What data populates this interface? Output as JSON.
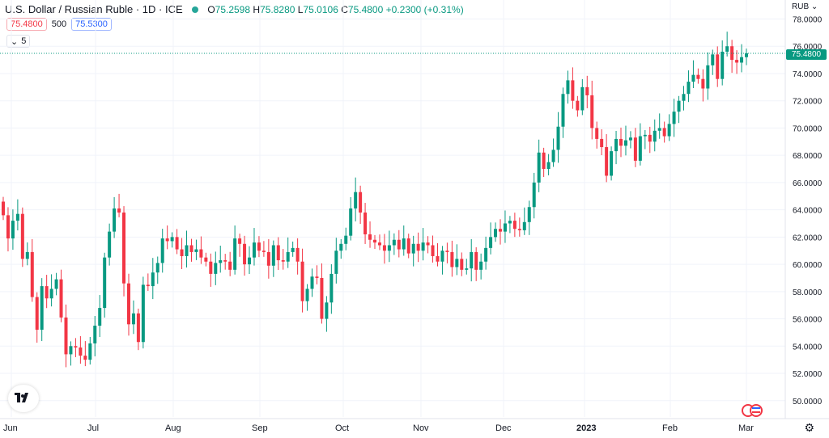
{
  "header": {
    "symbol": "U.S. Dollar / Russian Ruble · 1D · ICE",
    "open_label": "O",
    "open": "75.2598",
    "high_label": "H",
    "high": "75.8280",
    "low_label": "L",
    "low": "75.0106",
    "close_label": "C",
    "close": "75.4800",
    "change": "+0.2300 (+0.31%)",
    "bid": "75.4800",
    "spread": "500",
    "ask": "75.5300",
    "indicator_count": "5"
  },
  "price_axis": {
    "currency": "RUB",
    "last_price_label": "75.4800",
    "tick_labels": [
      "78.0000",
      "76.0000",
      "74.0000",
      "72.0000",
      "70.0000",
      "68.0000",
      "66.0000",
      "64.0000",
      "62.0000",
      "60.0000",
      "58.0000",
      "56.0000",
      "54.0000",
      "52.0000",
      "50.0000"
    ]
  },
  "time_axis": {
    "tick_labels": [
      "Jun",
      "Jul",
      "Aug",
      "Sep",
      "Oct",
      "Nov",
      "Dec",
      "2023",
      "Feb",
      "Mar"
    ]
  },
  "colors": {
    "up": "#089981",
    "down": "#f23645",
    "grid": "#f0f3fa",
    "last_line": "#089981"
  },
  "chart_data": {
    "type": "candlestick",
    "ylabel": "RUB",
    "ylim": [
      48.8,
      78.8
    ],
    "grid": true,
    "y_ticks": [
      78,
      76,
      74,
      72,
      70,
      68,
      66,
      64,
      62,
      60,
      58,
      56,
      54,
      52,
      50
    ],
    "x_ticks": [
      "Jun",
      "Jul",
      "Aug",
      "Sep",
      "Oct",
      "Nov",
      "Dec",
      "2023",
      "Feb",
      "Mar"
    ],
    "last_close": 75.48,
    "closes": [
      63.6,
      61.9,
      63.2,
      63.7,
      60.4,
      60.9,
      57.6,
      55.2,
      58.4,
      57.5,
      58.2,
      58.9,
      56.1,
      53.4,
      54.0,
      53.9,
      53.3,
      53.0,
      54.2,
      55.5,
      56.8,
      60.5,
      62.4,
      64.1,
      63.8,
      58.6,
      55.6,
      56.4,
      54.3,
      58.5,
      58.4,
      59.4,
      60.1,
      61.9,
      61.7,
      62.0,
      61.1,
      60.6,
      61.4,
      60.9,
      61.1,
      60.5,
      60.2,
      59.3,
      60.1,
      60.3,
      60.2,
      59.6,
      61.9,
      61.5,
      60.0,
      60.5,
      61.6,
      61.0,
      60.9,
      59.9,
      61.4,
      60.3,
      60.2,
      60.9,
      61.2,
      60.2,
      57.3,
      58.2,
      59.1,
      59.0,
      56.0,
      57.2,
      59.3,
      61.0,
      61.5,
      62.1,
      64.1,
      65.3,
      63.8,
      62.2,
      61.8,
      61.6,
      61.4,
      61.0,
      61.4,
      61.8,
      61.1,
      61.9,
      60.8,
      61.5,
      61.0,
      61.6,
      61.4,
      60.6,
      60.2,
      61.0,
      60.9,
      59.8,
      60.4,
      59.6,
      59.7,
      60.9,
      59.6,
      60.2,
      61.2,
      62.0,
      62.6,
      62.4,
      63.0,
      63.2,
      62.6,
      62.5,
      63.1,
      64.2,
      66.0,
      68.2,
      67.0,
      67.5,
      68.4,
      70.1,
      72.5,
      73.5,
      72.0,
      71.3,
      73.0,
      72.4,
      70.0,
      69.2,
      68.6,
      66.5,
      68.3,
      69.2,
      68.7,
      69.1,
      69.3,
      67.6,
      69.4,
      69.5,
      69.0,
      69.8,
      70.0,
      69.4,
      70.3,
      71.2,
      72.0,
      72.5,
      73.4,
      73.9,
      73.6,
      72.9,
      74.6,
      75.4,
      73.6,
      75.6,
      76.0,
      75.0,
      74.8,
      75.2,
      75.48
    ]
  }
}
